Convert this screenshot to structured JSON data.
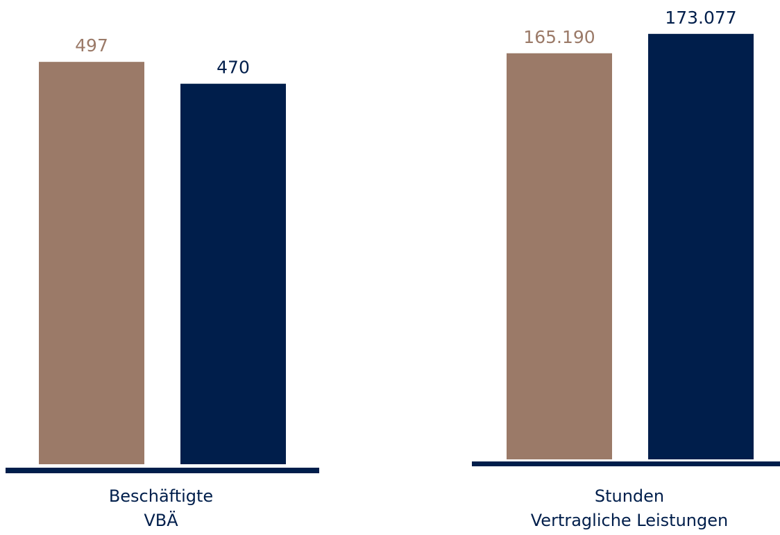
{
  "colors": {
    "series_a": "#9B7A68",
    "series_b": "#001E4B",
    "baseline": "#001E4B",
    "label_dark": "#001E4B",
    "label_light": "#9B7A68"
  },
  "chart_data": [
    {
      "type": "bar",
      "categories": [
        "Beschäftigte VBÄ"
      ],
      "category_lines": [
        "Beschäftigte",
        "VBÄ"
      ],
      "series": [
        {
          "values": [
            497
          ],
          "label": "497",
          "color": "#9B7A68"
        },
        {
          "values": [
            470
          ],
          "label": "470",
          "color": "#001E4B"
        }
      ],
      "ylim": [
        0,
        510
      ],
      "grid": false,
      "legend": "none"
    },
    {
      "type": "bar",
      "categories": [
        "Stunden Vertragliche Leistungen"
      ],
      "category_lines": [
        "Stunden",
        "Vertragliche Leistungen"
      ],
      "series": [
        {
          "values": [
            165190
          ],
          "label": "165.190",
          "color": "#9B7A68"
        },
        {
          "values": [
            173077
          ],
          "label": "173.077",
          "color": "#001E4B"
        }
      ],
      "ylim": [
        0,
        175000
      ],
      "grid": false,
      "legend": "none"
    }
  ]
}
